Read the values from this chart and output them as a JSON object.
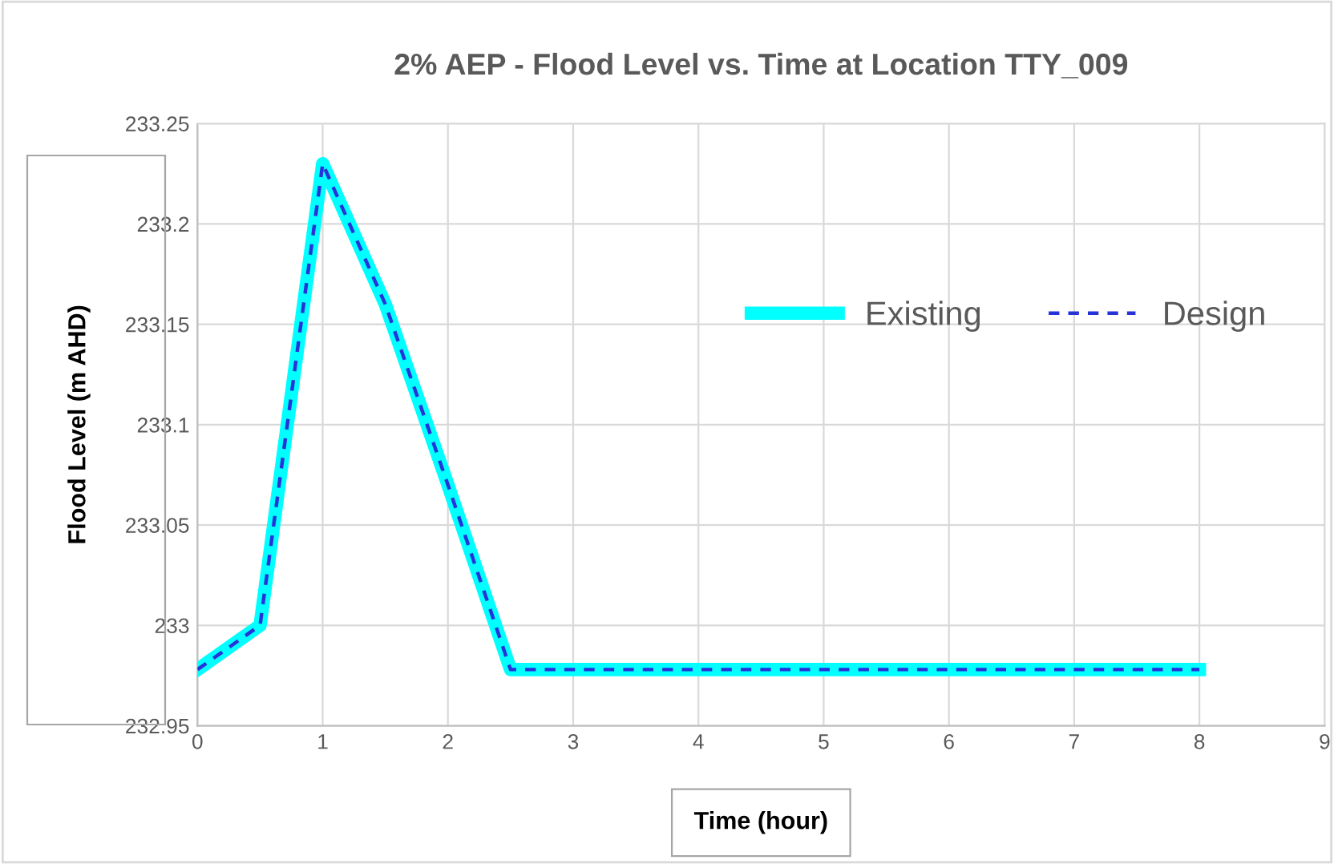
{
  "chart_data": {
    "type": "line",
    "title": "2% AEP - Flood Level vs. Time at Location TTY_009",
    "xlabel": "Time (hour)",
    "ylabel": "Flood Level (m AHD)",
    "x": [
      0,
      0.5,
      1,
      1.5,
      2,
      2.5,
      3,
      3.5,
      4,
      4.5,
      5,
      5.5,
      6,
      6.5,
      7,
      7.5,
      8
    ],
    "series": [
      {
        "name": "Existing",
        "color": "#00ffff",
        "line_style": "solid",
        "values": [
          232.978,
          233.0,
          233.23,
          233.16,
          233.07,
          232.978,
          232.978,
          232.978,
          232.978,
          232.978,
          232.978,
          232.978,
          232.978,
          232.978,
          232.978,
          232.978,
          232.978
        ]
      },
      {
        "name": "Design",
        "color": "#2633d9",
        "line_style": "dashed",
        "values": [
          232.978,
          233.0,
          233.23,
          233.16,
          233.07,
          232.978,
          232.978,
          232.978,
          232.978,
          232.978,
          232.978,
          232.978,
          232.978,
          232.978,
          232.978,
          232.978,
          232.978
        ]
      }
    ],
    "xlim": [
      0,
      9
    ],
    "xticks": [
      0,
      1,
      2,
      3,
      4,
      5,
      6,
      7,
      8,
      9
    ],
    "ylim": [
      232.95,
      233.25
    ],
    "yticks": [
      232.95,
      233,
      233.05,
      233.1,
      233.15,
      233.2,
      233.25
    ],
    "grid": true,
    "legend": "center right",
    "marker": "none"
  }
}
